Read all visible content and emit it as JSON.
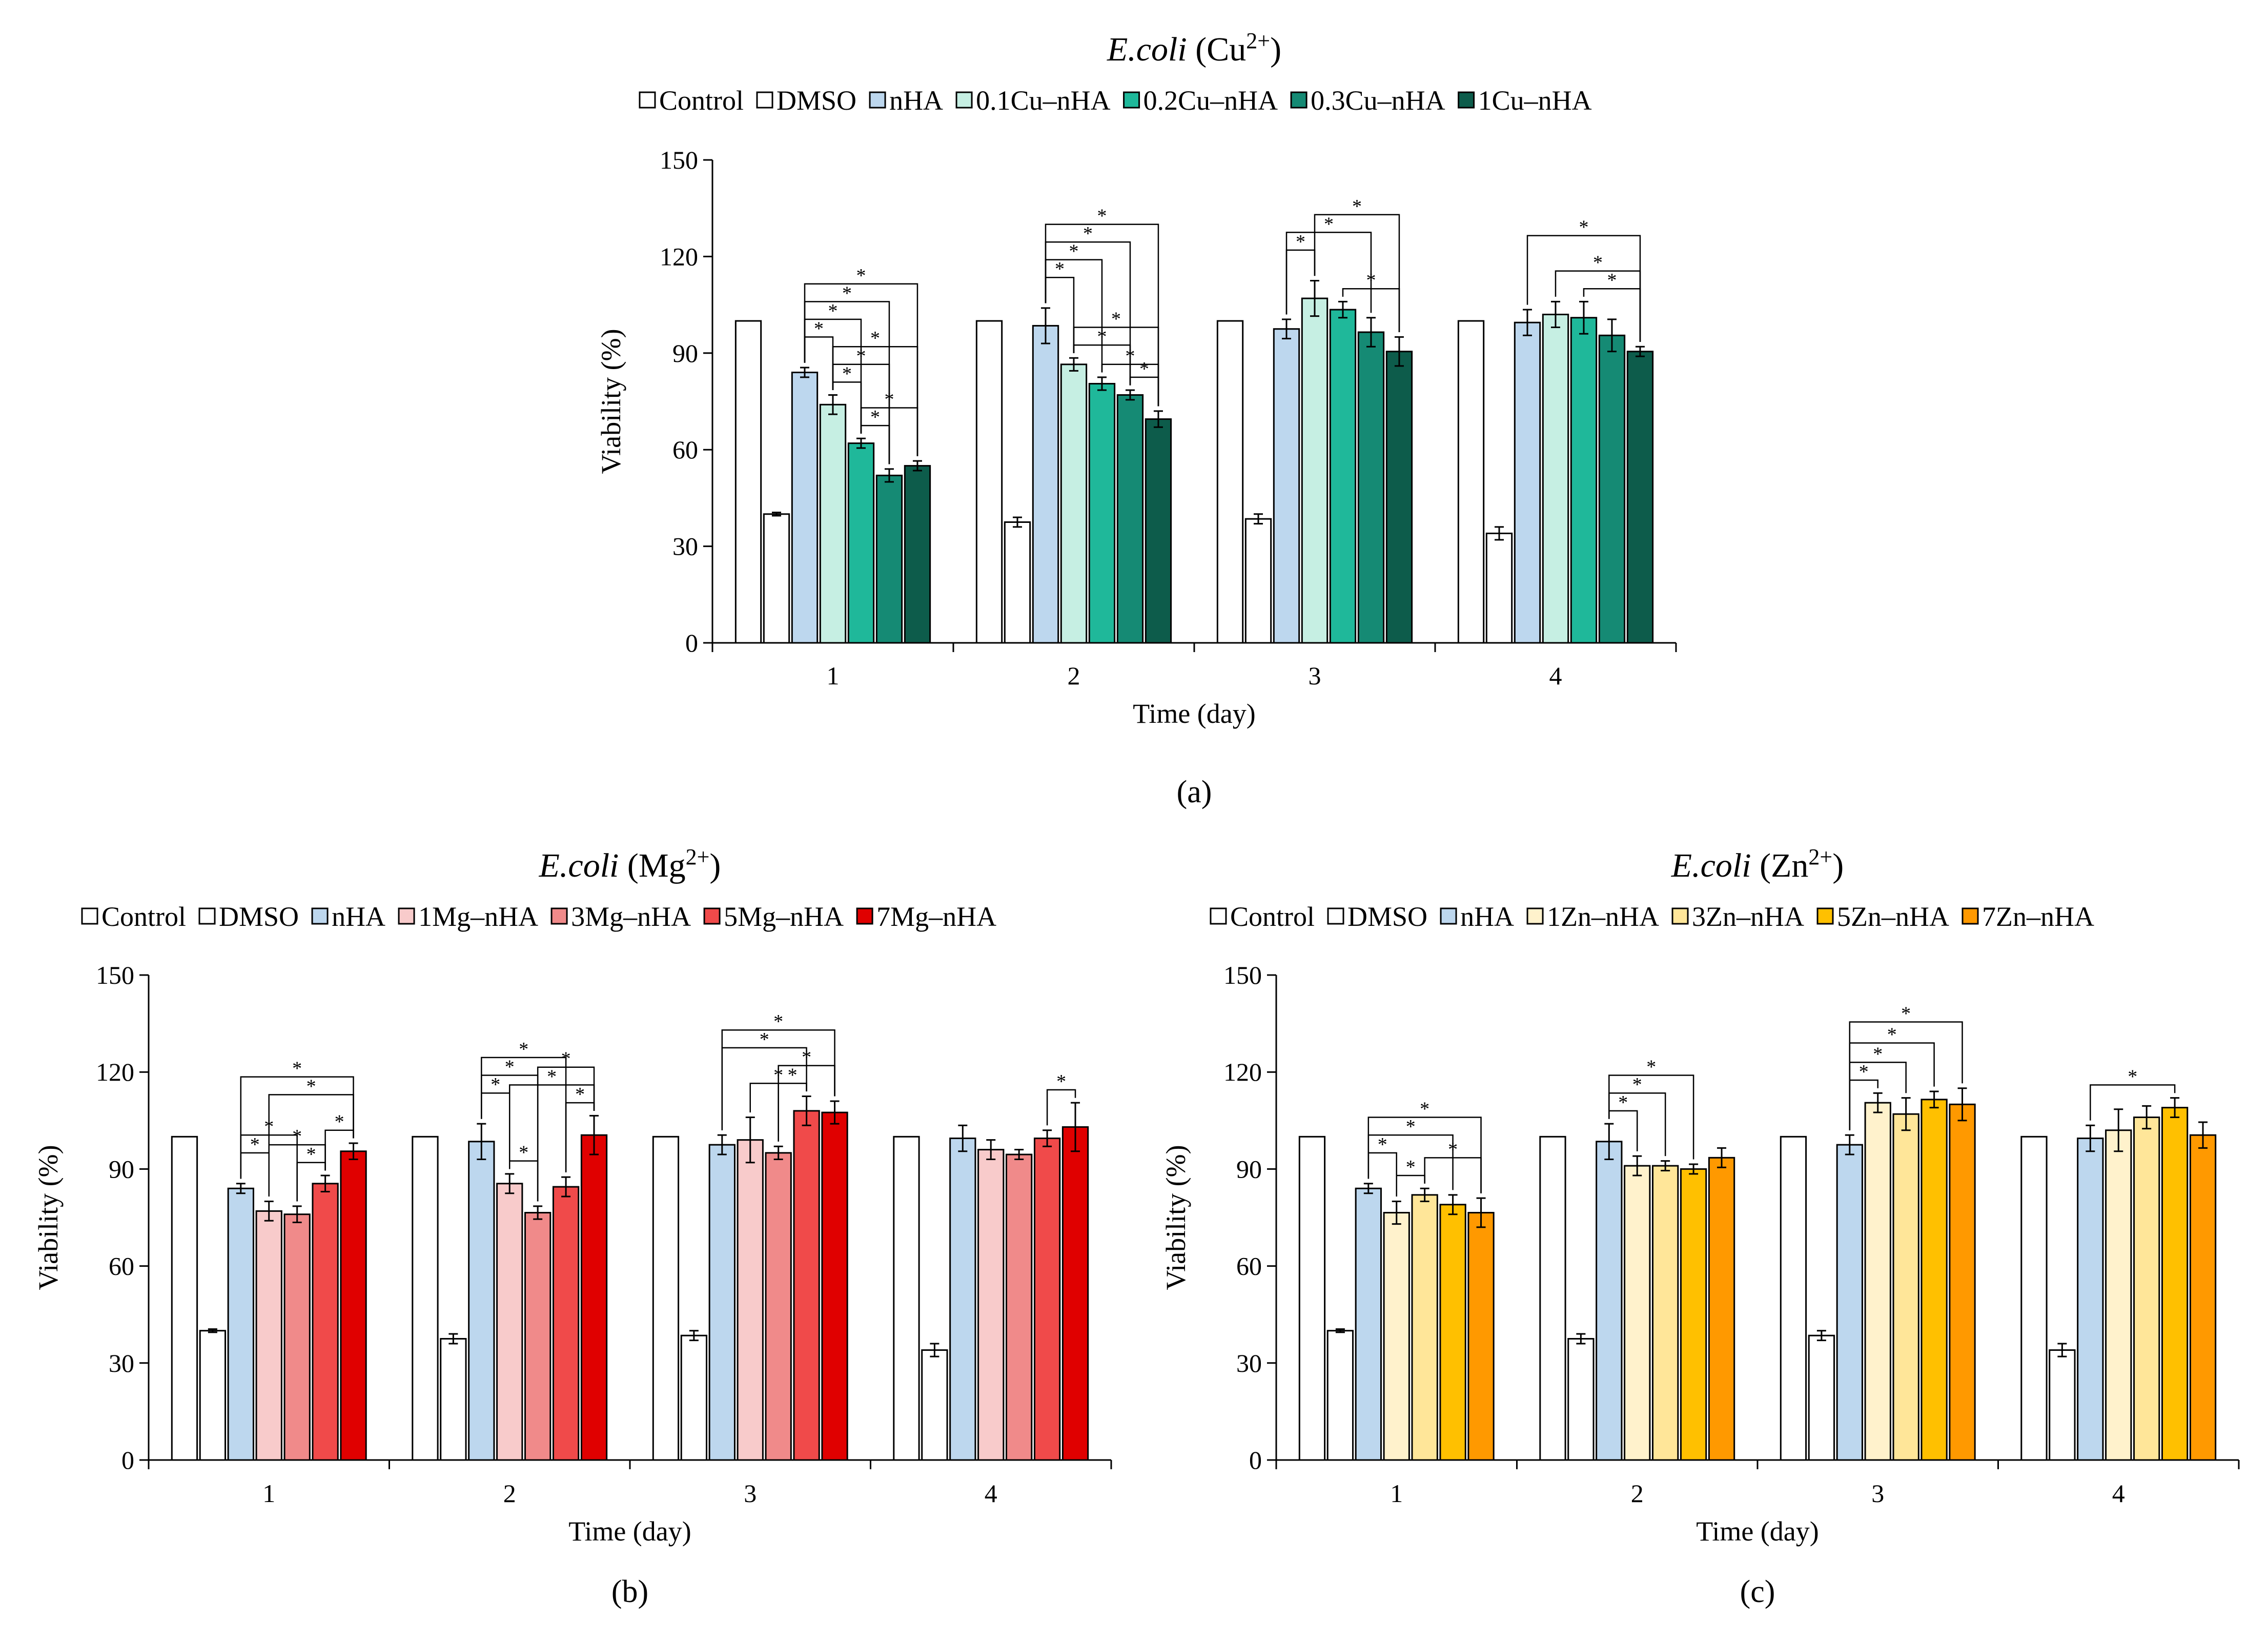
{
  "chart_data": [
    {
      "panel": "(a)",
      "type": "bar",
      "title_italic": "E.coli",
      "title_ion": "Cu",
      "title_charge": "2+",
      "xlabel": "Time (day)",
      "ylabel": "Viability (%)",
      "ylim": [
        0,
        150
      ],
      "yticks": [
        "0",
        "30",
        "60",
        "90",
        "120",
        "150"
      ],
      "categories": [
        "1",
        "2",
        "3",
        "4"
      ],
      "series": [
        {
          "name": "Control",
          "color": "#ffffff",
          "values": [
            100,
            100,
            100,
            100
          ],
          "errors": [
            0,
            0,
            0,
            0
          ]
        },
        {
          "name": "DMSO",
          "color": "#ffffff",
          "values": [
            40,
            37.5,
            38.5,
            34
          ],
          "errors": [
            0.5,
            1.5,
            1.5,
            2
          ]
        },
        {
          "name": "nHA",
          "color": "#bdd7ee",
          "values": [
            84,
            98.5,
            97.5,
            99.5
          ],
          "errors": [
            1.5,
            5.5,
            3,
            4
          ]
        },
        {
          "name": "0.1Cu–nHA",
          "color": "#c6efe3",
          "values": [
            74,
            86.5,
            107,
            102
          ],
          "errors": [
            3,
            2,
            5.5,
            4
          ]
        },
        {
          "name": "0.2Cu–nHA",
          "color": "#1fb89a",
          "values": [
            62,
            80.5,
            103.5,
            101
          ],
          "errors": [
            1.5,
            2,
            2.5,
            5
          ]
        },
        {
          "name": "0.3Cu–nHA",
          "color": "#158a74",
          "values": [
            52,
            77,
            96.5,
            95.5
          ],
          "errors": [
            2,
            1.5,
            4.5,
            5
          ]
        },
        {
          "name": "1Cu–nHA",
          "color": "#0d5c4b",
          "values": [
            55,
            69.5,
            90.5,
            90.5
          ],
          "errors": [
            1.5,
            2.5,
            4.5,
            1.5
          ]
        }
      ],
      "significance": [
        {
          "day": 0,
          "from": 2,
          "to": 3,
          "level": 1,
          "label": "*"
        },
        {
          "day": 0,
          "from": 2,
          "to": 4,
          "level": 2,
          "label": "*"
        },
        {
          "day": 0,
          "from": 2,
          "to": 5,
          "level": 3,
          "label": "*"
        },
        {
          "day": 0,
          "from": 2,
          "to": 6,
          "level": 4,
          "label": "*"
        },
        {
          "day": 0,
          "from": 3,
          "to": 4,
          "level": 0,
          "label": "*"
        },
        {
          "day": 0,
          "from": 3,
          "to": 5,
          "level": 1,
          "label": "*"
        },
        {
          "day": 0,
          "from": 3,
          "to": 6,
          "level": 2,
          "label": "*"
        },
        {
          "day": 0,
          "from": 4,
          "to": 5,
          "level": 0,
          "label": "*"
        },
        {
          "day": 0,
          "from": 4,
          "to": 6,
          "level": 1,
          "label": "*"
        },
        {
          "day": 1,
          "from": 2,
          "to": 3,
          "level": 1,
          "label": "*"
        },
        {
          "day": 1,
          "from": 2,
          "to": 4,
          "level": 2,
          "label": "*"
        },
        {
          "day": 1,
          "from": 2,
          "to": 5,
          "level": 3,
          "label": "*"
        },
        {
          "day": 1,
          "from": 2,
          "to": 6,
          "level": 4,
          "label": "*"
        },
        {
          "day": 1,
          "from": 3,
          "to": 5,
          "level": 0,
          "label": "*"
        },
        {
          "day": 1,
          "from": 3,
          "to": 6,
          "level": 1,
          "label": "*"
        },
        {
          "day": 1,
          "from": 4,
          "to": 6,
          "level": 0,
          "label": "*"
        },
        {
          "day": 1,
          "from": 5,
          "to": 6,
          "level": 0,
          "label": "*"
        },
        {
          "day": 2,
          "from": 2,
          "to": 3,
          "level": 1,
          "label": "*"
        },
        {
          "day": 2,
          "from": 2,
          "to": 5,
          "level": 2,
          "label": "*"
        },
        {
          "day": 2,
          "from": 3,
          "to": 6,
          "level": 3,
          "label": "*"
        },
        {
          "day": 2,
          "from": 4,
          "to": 6,
          "level": 0,
          "label": "*"
        },
        {
          "day": 3,
          "from": 2,
          "to": 6,
          "level": 3,
          "label": "*"
        },
        {
          "day": 3,
          "from": 3,
          "to": 6,
          "level": 1,
          "label": "*"
        },
        {
          "day": 3,
          "from": 4,
          "to": 6,
          "level": 0,
          "label": "*"
        }
      ]
    },
    {
      "panel": "(b)",
      "type": "bar",
      "title_italic": "E.coli",
      "title_ion": "Mg",
      "title_charge": "2+",
      "xlabel": "Time (day)",
      "ylabel": "Viability (%)",
      "ylim": [
        0,
        150
      ],
      "yticks": [
        "0",
        "30",
        "60",
        "90",
        "120",
        "150"
      ],
      "categories": [
        "1",
        "2",
        "3",
        "4"
      ],
      "series": [
        {
          "name": "Control",
          "color": "#ffffff",
          "values": [
            100,
            100,
            100,
            100
          ],
          "errors": [
            0,
            0,
            0,
            0
          ]
        },
        {
          "name": "DMSO",
          "color": "#ffffff",
          "values": [
            40,
            37.5,
            38.5,
            34
          ],
          "errors": [
            0.5,
            1.5,
            1.5,
            2
          ]
        },
        {
          "name": "nHA",
          "color": "#bdd7ee",
          "values": [
            84,
            98.5,
            97.5,
            99.5
          ],
          "errors": [
            1.5,
            5.5,
            3,
            4
          ]
        },
        {
          "name": "1Mg–nHA",
          "color": "#f8cbcb",
          "values": [
            77,
            85.5,
            99,
            96
          ],
          "errors": [
            3,
            3,
            7,
            3
          ]
        },
        {
          "name": "3Mg–nHA",
          "color": "#f08a8a",
          "values": [
            76,
            76.5,
            95,
            94.5
          ],
          "errors": [
            2.5,
            2,
            2,
            1.5
          ]
        },
        {
          "name": "5Mg–nHA",
          "color": "#f04a4a",
          "values": [
            85.5,
            84.5,
            108,
            99.5
          ],
          "errors": [
            2.5,
            3,
            4.5,
            2.5
          ]
        },
        {
          "name": "7Mg–nHA",
          "color": "#e00000",
          "values": [
            95.5,
            100.5,
            107.5,
            103
          ],
          "errors": [
            2.5,
            6,
            3.5,
            7.5
          ]
        }
      ],
      "significance": [
        {
          "day": 0,
          "from": 2,
          "to": 3,
          "level": 1,
          "label": "*"
        },
        {
          "day": 0,
          "from": 2,
          "to": 4,
          "level": 2,
          "label": "*"
        },
        {
          "day": 0,
          "from": 2,
          "to": 6,
          "level": 3,
          "label": "*"
        },
        {
          "day": 0,
          "from": 3,
          "to": 5,
          "level": 1,
          "label": "*"
        },
        {
          "day": 0,
          "from": 3,
          "to": 6,
          "level": 2,
          "label": "*"
        },
        {
          "day": 0,
          "from": 4,
          "to": 5,
          "level": 0,
          "label": "*"
        },
        {
          "day": 0,
          "from": 5,
          "to": 6,
          "level": 0,
          "label": "*"
        },
        {
          "day": 1,
          "from": 2,
          "to": 3,
          "level": 1,
          "label": "*"
        },
        {
          "day": 1,
          "from": 2,
          "to": 4,
          "level": 2,
          "label": "*"
        },
        {
          "day": 1,
          "from": 2,
          "to": 5,
          "level": 3,
          "label": "*"
        },
        {
          "day": 1,
          "from": 3,
          "to": 4,
          "level": 0,
          "label": "*"
        },
        {
          "day": 1,
          "from": 3,
          "to": 6,
          "level": 1,
          "label": "*"
        },
        {
          "day": 1,
          "from": 4,
          "to": 6,
          "level": 2,
          "label": "*"
        },
        {
          "day": 1,
          "from": 5,
          "to": 6,
          "level": 0,
          "label": "*"
        },
        {
          "day": 2,
          "from": 2,
          "to": 5,
          "level": 2,
          "label": "*"
        },
        {
          "day": 2,
          "from": 2,
          "to": 6,
          "level": 3,
          "label": "*"
        },
        {
          "day": 2,
          "from": 3,
          "to": 5,
          "level": 0,
          "label": "*"
        },
        {
          "day": 2,
          "from": 4,
          "to": 5,
          "level": 0,
          "label": "*"
        },
        {
          "day": 2,
          "from": 4,
          "to": 6,
          "level": 1,
          "label": "*"
        },
        {
          "day": 3,
          "from": 5,
          "to": 6,
          "level": 0,
          "label": "*"
        }
      ]
    },
    {
      "panel": "(c)",
      "type": "bar",
      "title_italic": "E.coli",
      "title_ion": "Zn",
      "title_charge": "2+",
      "xlabel": "Time (day)",
      "ylabel": "Viability (%)",
      "ylim": [
        0,
        150
      ],
      "yticks": [
        "0",
        "30",
        "60",
        "90",
        "120",
        "150"
      ],
      "categories": [
        "1",
        "2",
        "3",
        "4"
      ],
      "series": [
        {
          "name": "Control",
          "color": "#ffffff",
          "values": [
            100,
            100,
            100,
            100
          ],
          "errors": [
            0,
            0,
            0,
            0
          ]
        },
        {
          "name": "DMSO",
          "color": "#ffffff",
          "values": [
            40,
            37.5,
            38.5,
            34
          ],
          "errors": [
            0.5,
            1.5,
            1.5,
            2
          ]
        },
        {
          "name": "nHA",
          "color": "#bdd7ee",
          "values": [
            84,
            98.5,
            97.5,
            99.5
          ],
          "errors": [
            1.5,
            5.5,
            3,
            4
          ]
        },
        {
          "name": "1Zn–nHA",
          "color": "#fff2cc",
          "values": [
            76.5,
            91,
            110.5,
            102
          ],
          "errors": [
            3.5,
            3,
            3,
            6.5
          ]
        },
        {
          "name": "3Zn–nHA",
          "color": "#ffe699",
          "values": [
            82,
            91,
            107,
            106
          ],
          "errors": [
            2,
            1.5,
            5,
            3.5
          ]
        },
        {
          "name": "5Zn–nHA",
          "color": "#ffc000",
          "values": [
            79,
            90,
            111.5,
            109
          ],
          "errors": [
            3,
            1.5,
            2.5,
            3
          ]
        },
        {
          "name": "7Zn–nHA",
          "color": "#ff9900",
          "values": [
            76.5,
            93.5,
            110,
            100.5
          ],
          "errors": [
            4.5,
            3,
            5,
            4
          ]
        }
      ],
      "significance": [
        {
          "day": 0,
          "from": 2,
          "to": 3,
          "level": 1,
          "label": "*"
        },
        {
          "day": 0,
          "from": 2,
          "to": 5,
          "level": 2,
          "label": "*"
        },
        {
          "day": 0,
          "from": 2,
          "to": 6,
          "level": 3,
          "label": "*"
        },
        {
          "day": 0,
          "from": 3,
          "to": 4,
          "level": 0,
          "label": "*"
        },
        {
          "day": 0,
          "from": 4,
          "to": 6,
          "level": 1,
          "label": "*"
        },
        {
          "day": 1,
          "from": 2,
          "to": 3,
          "level": 0,
          "label": "*"
        },
        {
          "day": 1,
          "from": 2,
          "to": 4,
          "level": 1,
          "label": "*"
        },
        {
          "day": 1,
          "from": 2,
          "to": 5,
          "level": 2,
          "label": "*"
        },
        {
          "day": 2,
          "from": 2,
          "to": 3,
          "level": 0,
          "label": "*"
        },
        {
          "day": 2,
          "from": 2,
          "to": 4,
          "level": 1,
          "label": "*"
        },
        {
          "day": 2,
          "from": 2,
          "to": 5,
          "level": 2,
          "label": "*"
        },
        {
          "day": 2,
          "from": 2,
          "to": 6,
          "level": 3,
          "label": "*"
        },
        {
          "day": 3,
          "from": 2,
          "to": 5,
          "level": 0,
          "label": "*"
        }
      ]
    }
  ]
}
